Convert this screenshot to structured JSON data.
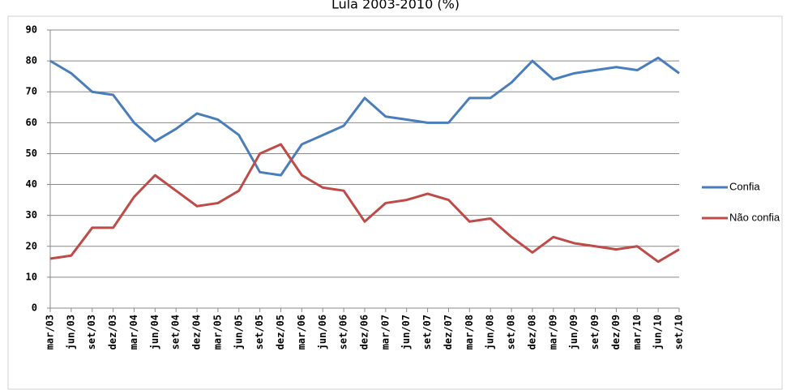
{
  "chart_data": {
    "type": "line",
    "title": "Lula 2003-2010 (%)",
    "categories": [
      "mar/03",
      "jun/03",
      "set/03",
      "dez/03",
      "mar/04",
      "jun/04",
      "set/04",
      "dez/04",
      "mar/05",
      "jun/05",
      "set/05",
      "dez/05",
      "mar/06",
      "jun/06",
      "set/06",
      "dez/06",
      "mar/07",
      "jun/07",
      "set/07",
      "dez/07",
      "mar/08",
      "jun/08",
      "set/08",
      "dez/08",
      "mar/09",
      "jun/09",
      "set/09",
      "dez/09",
      "mar/10",
      "jun/10",
      "set/10"
    ],
    "series": [
      {
        "name": "Confia",
        "color": "#4a7ebb",
        "values": [
          80,
          76,
          70,
          69,
          60,
          54,
          58,
          63,
          61,
          56,
          44,
          43,
          53,
          56,
          59,
          68,
          62,
          61,
          60,
          60,
          68,
          68,
          73,
          80,
          74,
          76,
          77,
          78,
          77,
          81,
          76
        ]
      },
      {
        "name": "Não confia",
        "color": "#be4b48",
        "values": [
          16,
          17,
          26,
          26,
          36,
          43,
          38,
          33,
          34,
          38,
          50,
          53,
          43,
          39,
          38,
          28,
          34,
          35,
          37,
          35,
          28,
          29,
          23,
          18,
          23,
          21,
          20,
          19,
          20,
          15,
          19
        ]
      }
    ],
    "ylim": [
      0,
      90
    ],
    "yticks": [
      0,
      10,
      20,
      30,
      40,
      50,
      60,
      70,
      80,
      90
    ],
    "grid": true,
    "legend": "right"
  }
}
